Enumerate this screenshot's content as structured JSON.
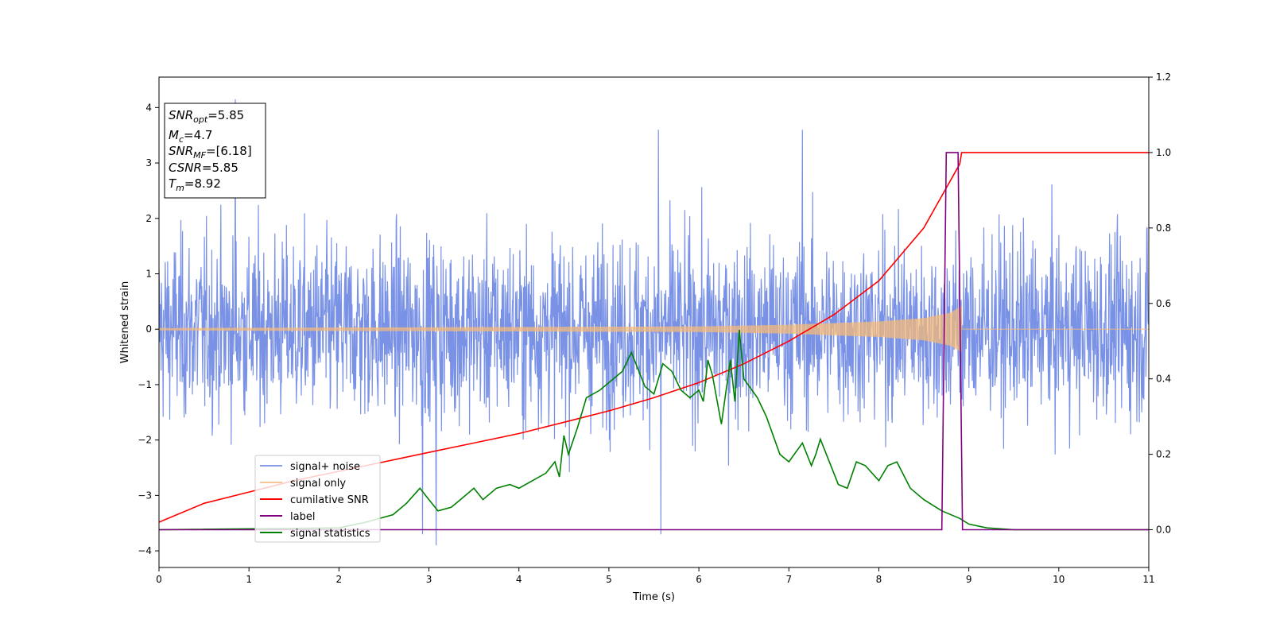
{
  "chart_data": {
    "type": "line",
    "xlabel": "Time (s)",
    "ylabel": "Whitened strain",
    "xlim": [
      0,
      11
    ],
    "ylim_left": [
      -4.3,
      4.55
    ],
    "ylim_right": [
      -0.1,
      1.2
    ],
    "x_ticks": [
      0,
      1,
      2,
      3,
      4,
      5,
      6,
      7,
      8,
      9,
      10,
      11
    ],
    "y_ticks_left": [
      -4,
      -3,
      -2,
      -1,
      0,
      1,
      2,
      3,
      4
    ],
    "y_ticks_right": [
      0.0,
      0.2,
      0.4,
      0.6,
      0.8,
      1.0,
      1.2
    ],
    "grid": false,
    "legend_position": "lower-left",
    "colors": {
      "signal_noise": "#6b86e3",
      "signal_only": "#f5b97a",
      "cumulative_snr": "#ff0000",
      "label": "#800080",
      "signal_statistics": "#008000"
    },
    "stats_box": [
      {
        "base": "SNR",
        "sub": "opt",
        "value": "=5.85"
      },
      {
        "base": "M",
        "sub": "c",
        "value": "=4.7"
      },
      {
        "base": "SNR",
        "sub": "MF",
        "value": "=[6.18]"
      },
      {
        "base": "CSNR",
        "sub": "",
        "value": "=5.85"
      },
      {
        "base": "T",
        "sub": "m",
        "value": "=8.92"
      }
    ],
    "series": [
      {
        "name": "signal+ noise",
        "axis": "left",
        "description_values": "noise-dominated whitened strain, mostly within [-2, 2.5], peaks near 4.2 and -3.9",
        "x_range": [
          0,
          11
        ],
        "peaks": [
          [
            0.85,
            4.15
          ],
          [
            3.08,
            -3.9
          ],
          [
            5.55,
            3.6
          ],
          [
            7.15,
            3.6
          ],
          [
            2.93,
            -3.7
          ],
          [
            5.58,
            -3.7
          ]
        ]
      },
      {
        "name": "signal only",
        "axis": "left",
        "x_range": [
          0,
          8.92
        ],
        "envelope": [
          [
            0,
            0.02
          ],
          [
            2,
            0.03
          ],
          [
            4,
            0.04
          ],
          [
            6,
            0.05
          ],
          [
            7,
            0.08
          ],
          [
            8,
            0.14
          ],
          [
            8.5,
            0.2
          ],
          [
            8.8,
            0.3
          ],
          [
            8.92,
            0.42
          ]
        ],
        "after_merger": 0
      },
      {
        "name": "cumilative SNR",
        "axis": "right",
        "x": [
          0,
          0.5,
          1,
          1.5,
          2,
          2.5,
          3,
          3.5,
          4,
          4.5,
          5,
          5.5,
          6,
          6.5,
          7,
          7.5,
          8,
          8.5,
          8.9,
          8.92,
          11
        ],
        "values": [
          0.02,
          0.07,
          0.1,
          0.13,
          0.155,
          0.18,
          0.205,
          0.23,
          0.255,
          0.285,
          0.315,
          0.35,
          0.39,
          0.44,
          0.5,
          0.57,
          0.66,
          0.8,
          0.97,
          1.0,
          1.0
        ]
      },
      {
        "name": "label",
        "axis": "right",
        "x": [
          0,
          8.7,
          8.75,
          8.88,
          8.93,
          11
        ],
        "values": [
          0.0,
          0.0,
          1.0,
          1.0,
          0.0,
          0.0
        ]
      },
      {
        "name": "signal statistics",
        "axis": "right",
        "x": [
          0,
          2.0,
          2.3,
          2.6,
          2.75,
          2.9,
          3.0,
          3.1,
          3.25,
          3.35,
          3.5,
          3.6,
          3.75,
          3.9,
          4.0,
          4.3,
          4.4,
          4.45,
          4.5,
          4.55,
          4.65,
          4.75,
          4.9,
          5.0,
          5.15,
          5.25,
          5.3,
          5.4,
          5.5,
          5.6,
          5.7,
          5.8,
          5.9,
          6.0,
          6.05,
          6.1,
          6.15,
          6.25,
          6.35,
          6.4,
          6.45,
          6.5,
          6.65,
          6.75,
          6.9,
          7.0,
          7.15,
          7.25,
          7.3,
          7.35,
          7.45,
          7.55,
          7.65,
          7.75,
          7.85,
          8.0,
          8.1,
          8.2,
          8.35,
          8.5,
          8.7,
          8.9,
          9.0,
          9.2,
          9.5,
          11
        ],
        "values": [
          0.0,
          0.005,
          0.02,
          0.04,
          0.07,
          0.11,
          0.08,
          0.05,
          0.06,
          0.08,
          0.11,
          0.08,
          0.11,
          0.12,
          0.11,
          0.15,
          0.18,
          0.14,
          0.25,
          0.2,
          0.27,
          0.35,
          0.37,
          0.39,
          0.42,
          0.47,
          0.44,
          0.38,
          0.36,
          0.44,
          0.42,
          0.37,
          0.35,
          0.37,
          0.34,
          0.45,
          0.41,
          0.28,
          0.45,
          0.34,
          0.53,
          0.4,
          0.35,
          0.3,
          0.2,
          0.18,
          0.23,
          0.17,
          0.2,
          0.24,
          0.18,
          0.12,
          0.11,
          0.18,
          0.17,
          0.13,
          0.17,
          0.18,
          0.11,
          0.08,
          0.05,
          0.03,
          0.015,
          0.005,
          0.0,
          0.0
        ]
      }
    ]
  }
}
